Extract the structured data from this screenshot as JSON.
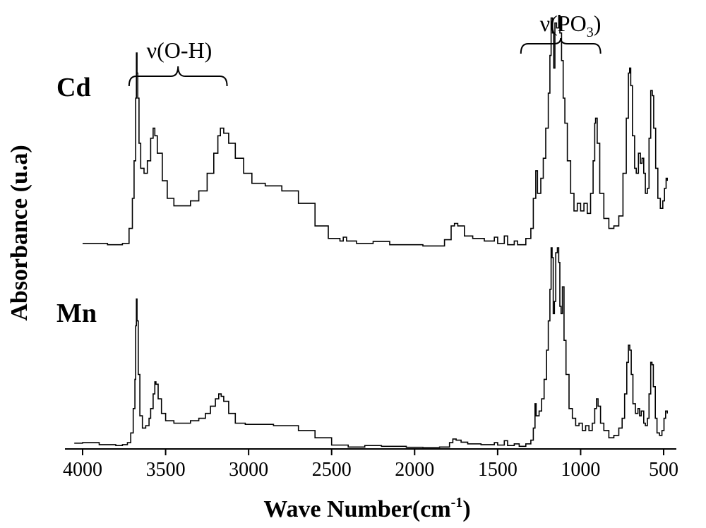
{
  "chart_data": {
    "type": "line",
    "title": "",
    "xlabel": "Wave Number(cm",
    "xlabel_sup": "-1",
    "xlabel_close": ")",
    "ylabel": "Absorbance (u.a)",
    "xlim": [
      4050,
      450
    ],
    "x_ticks": [
      4000,
      3500,
      3000,
      2500,
      2000,
      1500,
      1000,
      500
    ],
    "x_tick_labels": [
      "4000",
      "3500",
      "3000",
      "2500",
      "2000",
      "1500",
      "1000",
      "500"
    ],
    "y_ticks": false,
    "grid": false,
    "series": [
      {
        "name": "Cd",
        "label": "Cd",
        "offset": 1.0,
        "points": [
          [
            4000,
            0.02
          ],
          [
            3850,
            0.015
          ],
          [
            3760,
            0.02
          ],
          [
            3720,
            0.08
          ],
          [
            3700,
            0.2
          ],
          [
            3690,
            0.35
          ],
          [
            3680,
            0.6
          ],
          [
            3676,
            0.78
          ],
          [
            3672,
            0.7
          ],
          [
            3668,
            0.6
          ],
          [
            3660,
            0.42
          ],
          [
            3650,
            0.32
          ],
          [
            3630,
            0.3
          ],
          [
            3610,
            0.35
          ],
          [
            3590,
            0.44
          ],
          [
            3575,
            0.48
          ],
          [
            3565,
            0.45
          ],
          [
            3550,
            0.38
          ],
          [
            3520,
            0.27
          ],
          [
            3490,
            0.2
          ],
          [
            3450,
            0.17
          ],
          [
            3400,
            0.17
          ],
          [
            3350,
            0.19
          ],
          [
            3300,
            0.23
          ],
          [
            3250,
            0.3
          ],
          [
            3210,
            0.38
          ],
          [
            3185,
            0.45
          ],
          [
            3170,
            0.48
          ],
          [
            3150,
            0.46
          ],
          [
            3120,
            0.42
          ],
          [
            3080,
            0.36
          ],
          [
            3030,
            0.3
          ],
          [
            2980,
            0.26
          ],
          [
            2900,
            0.25
          ],
          [
            2800,
            0.23
          ],
          [
            2700,
            0.18
          ],
          [
            2600,
            0.09
          ],
          [
            2520,
            0.04
          ],
          [
            2450,
            0.03
          ],
          [
            2430,
            0.045
          ],
          [
            2410,
            0.03
          ],
          [
            2350,
            0.02
          ],
          [
            2250,
            0.028
          ],
          [
            2150,
            0.015
          ],
          [
            1950,
            0.01
          ],
          [
            1820,
            0.035
          ],
          [
            1780,
            0.09
          ],
          [
            1760,
            0.1
          ],
          [
            1740,
            0.09
          ],
          [
            1700,
            0.05
          ],
          [
            1650,
            0.04
          ],
          [
            1580,
            0.03
          ],
          [
            1520,
            0.045
          ],
          [
            1500,
            0.02
          ],
          [
            1460,
            0.05
          ],
          [
            1440,
            0.015
          ],
          [
            1400,
            0.03
          ],
          [
            1380,
            0.015
          ],
          [
            1330,
            0.04
          ],
          [
            1300,
            0.08
          ],
          [
            1285,
            0.2
          ],
          [
            1270,
            0.31
          ],
          [
            1260,
            0.22
          ],
          [
            1240,
            0.28
          ],
          [
            1225,
            0.36
          ],
          [
            1210,
            0.48
          ],
          [
            1195,
            0.62
          ],
          [
            1185,
            0.77
          ],
          [
            1178,
            0.92
          ],
          [
            1170,
            0.86
          ],
          [
            1162,
            0.72
          ],
          [
            1155,
            0.9
          ],
          [
            1145,
            0.88
          ],
          [
            1132,
            0.93
          ],
          [
            1125,
            0.86
          ],
          [
            1115,
            0.75
          ],
          [
            1105,
            0.6
          ],
          [
            1095,
            0.5
          ],
          [
            1080,
            0.35
          ],
          [
            1060,
            0.22
          ],
          [
            1040,
            0.15
          ],
          [
            1020,
            0.18
          ],
          [
            1000,
            0.15
          ],
          [
            980,
            0.18
          ],
          [
            960,
            0.14
          ],
          [
            940,
            0.22
          ],
          [
            925,
            0.35
          ],
          [
            915,
            0.5
          ],
          [
            910,
            0.52
          ],
          [
            900,
            0.42
          ],
          [
            885,
            0.22
          ],
          [
            860,
            0.12
          ],
          [
            830,
            0.08
          ],
          [
            800,
            0.09
          ],
          [
            770,
            0.13
          ],
          [
            745,
            0.3
          ],
          [
            725,
            0.52
          ],
          [
            712,
            0.7
          ],
          [
            705,
            0.72
          ],
          [
            698,
            0.65
          ],
          [
            688,
            0.45
          ],
          [
            675,
            0.32
          ],
          [
            665,
            0.3
          ],
          [
            652,
            0.38
          ],
          [
            640,
            0.34
          ],
          [
            630,
            0.36
          ],
          [
            620,
            0.3
          ],
          [
            610,
            0.22
          ],
          [
            598,
            0.24
          ],
          [
            588,
            0.44
          ],
          [
            578,
            0.63
          ],
          [
            568,
            0.61
          ],
          [
            560,
            0.48
          ],
          [
            548,
            0.32
          ],
          [
            535,
            0.2
          ],
          [
            520,
            0.16
          ],
          [
            505,
            0.19
          ],
          [
            495,
            0.24
          ],
          [
            485,
            0.28
          ],
          [
            478,
            0.27
          ]
        ]
      },
      {
        "name": "Mn",
        "label": "Mn",
        "offset": 0.0,
        "points": [
          [
            4050,
            0.018
          ],
          [
            4000,
            0.02
          ],
          [
            3900,
            0.012
          ],
          [
            3800,
            0.008
          ],
          [
            3760,
            0.012
          ],
          [
            3730,
            0.02
          ],
          [
            3710,
            0.06
          ],
          [
            3695,
            0.16
          ],
          [
            3685,
            0.28
          ],
          [
            3680,
            0.5
          ],
          [
            3676,
            0.61
          ],
          [
            3672,
            0.52
          ],
          [
            3665,
            0.3
          ],
          [
            3655,
            0.13
          ],
          [
            3640,
            0.08
          ],
          [
            3620,
            0.09
          ],
          [
            3600,
            0.12
          ],
          [
            3590,
            0.16
          ],
          [
            3575,
            0.22
          ],
          [
            3565,
            0.27
          ],
          [
            3558,
            0.26
          ],
          [
            3545,
            0.2
          ],
          [
            3525,
            0.14
          ],
          [
            3500,
            0.11
          ],
          [
            3450,
            0.1
          ],
          [
            3400,
            0.1
          ],
          [
            3350,
            0.11
          ],
          [
            3300,
            0.12
          ],
          [
            3260,
            0.14
          ],
          [
            3230,
            0.17
          ],
          [
            3200,
            0.2
          ],
          [
            3180,
            0.22
          ],
          [
            3165,
            0.21
          ],
          [
            3150,
            0.19
          ],
          [
            3120,
            0.14
          ],
          [
            3080,
            0.1
          ],
          [
            3020,
            0.095
          ],
          [
            2950,
            0.095
          ],
          [
            2850,
            0.09
          ],
          [
            2780,
            0.09
          ],
          [
            2700,
            0.07
          ],
          [
            2600,
            0.04
          ],
          [
            2500,
            0.01
          ],
          [
            2400,
            0.002
          ],
          [
            2300,
            0.008
          ],
          [
            2200,
            0.005
          ],
          [
            2050,
            0.001
          ],
          [
            1950,
            0.0
          ],
          [
            1850,
            0.002
          ],
          [
            1790,
            0.02
          ],
          [
            1770,
            0.035
          ],
          [
            1750,
            0.03
          ],
          [
            1720,
            0.022
          ],
          [
            1680,
            0.015
          ],
          [
            1600,
            0.012
          ],
          [
            1520,
            0.02
          ],
          [
            1500,
            0.01
          ],
          [
            1460,
            0.028
          ],
          [
            1440,
            0.008
          ],
          [
            1400,
            0.015
          ],
          [
            1370,
            0.005
          ],
          [
            1330,
            0.015
          ],
          [
            1300,
            0.03
          ],
          [
            1285,
            0.08
          ],
          [
            1275,
            0.18
          ],
          [
            1268,
            0.13
          ],
          [
            1250,
            0.15
          ],
          [
            1235,
            0.2
          ],
          [
            1220,
            0.28
          ],
          [
            1205,
            0.4
          ],
          [
            1195,
            0.52
          ],
          [
            1185,
            0.65
          ],
          [
            1178,
            0.82
          ],
          [
            1172,
            0.78
          ],
          [
            1165,
            0.55
          ],
          [
            1158,
            0.6
          ],
          [
            1150,
            0.8
          ],
          [
            1140,
            0.82
          ],
          [
            1132,
            0.76
          ],
          [
            1125,
            0.58
          ],
          [
            1118,
            0.55
          ],
          [
            1110,
            0.66
          ],
          [
            1100,
            0.44
          ],
          [
            1088,
            0.3
          ],
          [
            1070,
            0.16
          ],
          [
            1050,
            0.12
          ],
          [
            1030,
            0.09
          ],
          [
            1010,
            0.1
          ],
          [
            990,
            0.07
          ],
          [
            970,
            0.09
          ],
          [
            950,
            0.07
          ],
          [
            930,
            0.1
          ],
          [
            915,
            0.16
          ],
          [
            905,
            0.2
          ],
          [
            895,
            0.17
          ],
          [
            880,
            0.1
          ],
          [
            860,
            0.07
          ],
          [
            830,
            0.04
          ],
          [
            800,
            0.05
          ],
          [
            770,
            0.08
          ],
          [
            750,
            0.12
          ],
          [
            735,
            0.22
          ],
          [
            722,
            0.35
          ],
          [
            712,
            0.42
          ],
          [
            704,
            0.4
          ],
          [
            695,
            0.3
          ],
          [
            685,
            0.18
          ],
          [
            670,
            0.14
          ],
          [
            655,
            0.16
          ],
          [
            645,
            0.13
          ],
          [
            635,
            0.15
          ],
          [
            620,
            0.1
          ],
          [
            610,
            0.09
          ],
          [
            598,
            0.12
          ],
          [
            588,
            0.22
          ],
          [
            578,
            0.35
          ],
          [
            570,
            0.34
          ],
          [
            562,
            0.25
          ],
          [
            550,
            0.12
          ],
          [
            540,
            0.06
          ],
          [
            525,
            0.05
          ],
          [
            510,
            0.07
          ],
          [
            498,
            0.12
          ],
          [
            488,
            0.15
          ],
          [
            478,
            0.14
          ]
        ]
      }
    ],
    "annotations": [
      {
        "text": "ν(O-H)",
        "from": 3720,
        "to": 3130
      },
      {
        "text": "ν(PO",
        "sub": "3",
        "close": ")",
        "from": 1360,
        "to": 880
      }
    ]
  }
}
